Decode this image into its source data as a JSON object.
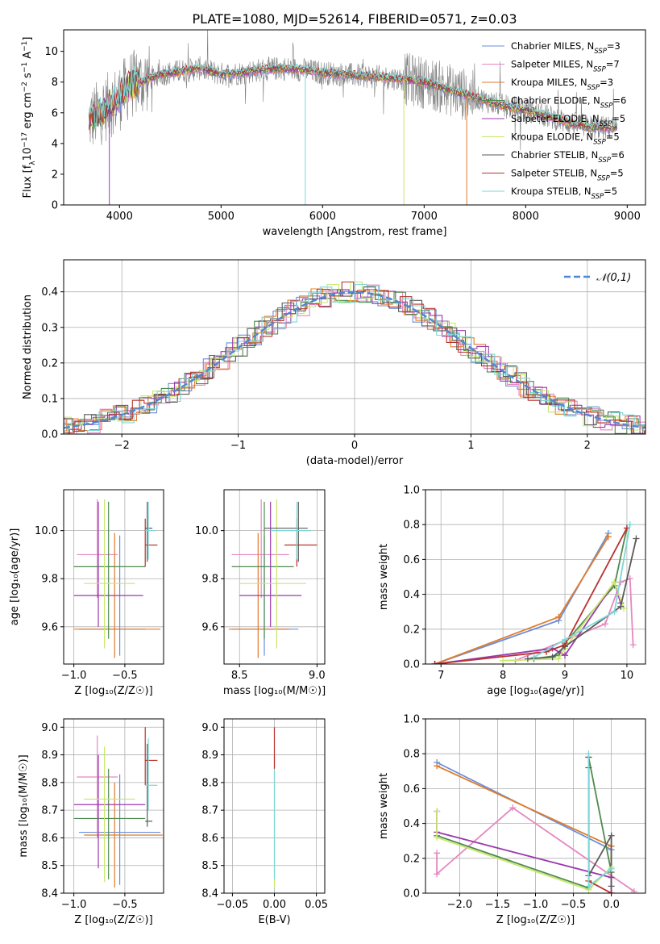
{
  "figure": {
    "title": "PLATE=1080, MJD=52614, FIBERID=0571, z=0.03"
  },
  "colors": {
    "series": [
      "#6a8fd8",
      "#e687c0",
      "#e07b2c",
      "#4f8a4f",
      "#9b3aad",
      "#c8e86b",
      "#5a5a5a",
      "#b8322d",
      "#7fd6d6"
    ],
    "grid": "#b0b0b0",
    "gauss": "#4f86d6"
  },
  "legend1": [
    {
      "label": "Chabrier MILES, N_SSP=3",
      "base": "Chabrier MILES, N",
      "sub": "SSP",
      "eq": "=3"
    },
    {
      "label": "Salpeter MILES, N_SSP=7",
      "base": "Salpeter MILES, N",
      "sub": "SSP",
      "eq": "=7"
    },
    {
      "label": "Kroupa MILES, N_SSP=3",
      "base": "Kroupa MILES, N",
      "sub": "SSP",
      "eq": "=3"
    },
    {
      "label": "Chabrier ELODIE, N_SSP=6",
      "base": "Chabrier ELODIE, N",
      "sub": "SSP",
      "eq": "=6"
    },
    {
      "label": "Salpeter ELODIE, N_SSP=5",
      "base": "Salpeter ELODIE, N",
      "sub": "SSP",
      "eq": "=5"
    },
    {
      "label": "Kroupa ELODIE, N_SSP=5",
      "base": "Kroupa ELODIE, N",
      "sub": "SSP",
      "eq": "=5"
    },
    {
      "label": "Chabrier STELIB, N_SSP=6",
      "base": "Chabrier STELIB, N",
      "sub": "SSP",
      "eq": "=6"
    },
    {
      "label": "Salpeter STELIB, N_SSP=5",
      "base": "Salpeter STELIB, N",
      "sub": "SSP",
      "eq": "=5"
    },
    {
      "label": "Kroupa STELIB, N_SSP=5",
      "base": "Kroupa STELIB, N",
      "sub": "SSP",
      "eq": "=5"
    }
  ],
  "chart_data": [
    {
      "type": "line",
      "name": "spectrum",
      "xlabel": "wavelength [Angstrom, rest frame]",
      "ylabel_parts": {
        "a": "Flux [f",
        "asub": "λ",
        "b": "10",
        "bsup": "−17",
        "c": " erg cm",
        "csup": "−2",
        "d": " s",
        "dsup": "−1",
        "e": " A",
        "esup": "−1",
        "f": "]"
      },
      "xlim": [
        3450,
        9180
      ],
      "ylim": [
        0,
        11.4
      ],
      "xticks": [
        4000,
        5000,
        6000,
        7000,
        8000,
        9000
      ],
      "yticks": [
        0,
        2,
        4,
        6,
        8,
        10
      ],
      "observed_color": "#808080",
      "legend_position": "top-right",
      "continuum": [
        [
          3700,
          5.5
        ],
        [
          3800,
          6.0
        ],
        [
          3900,
          6.5
        ],
        [
          4000,
          7.0
        ],
        [
          4100,
          7.8
        ],
        [
          4200,
          8.0
        ],
        [
          4400,
          8.5
        ],
        [
          4600,
          8.7
        ],
        [
          4800,
          8.9
        ],
        [
          5000,
          8.5
        ],
        [
          5200,
          8.6
        ],
        [
          5400,
          8.8
        ],
        [
          5600,
          8.9
        ],
        [
          5800,
          8.8
        ],
        [
          6000,
          8.6
        ],
        [
          6200,
          8.5
        ],
        [
          6400,
          8.4
        ],
        [
          6600,
          8.3
        ],
        [
          6800,
          8.2
        ],
        [
          7000,
          8.0
        ],
        [
          7200,
          7.6
        ],
        [
          7400,
          7.2
        ],
        [
          7600,
          6.8
        ],
        [
          7800,
          6.4
        ],
        [
          8000,
          6.2
        ],
        [
          8200,
          5.8
        ],
        [
          8400,
          5.4
        ],
        [
          8600,
          5.1
        ],
        [
          8800,
          5.0
        ],
        [
          8900,
          5.1
        ]
      ],
      "model_dropouts": [
        [
          3900,
          0
        ],
        [
          5830,
          0
        ],
        [
          6800,
          0
        ],
        [
          7420,
          0
        ]
      ]
    },
    {
      "type": "line",
      "name": "residual-distribution",
      "xlabel": "(data-model)/error",
      "ylabel": "Normed distribution",
      "xlim": [
        -2.5,
        2.5
      ],
      "ylim": [
        0,
        0.49
      ],
      "xticks": [
        -2,
        -1,
        0,
        1,
        2
      ],
      "xtick_labels": [
        "−2",
        "−1",
        "0",
        "1",
        "2"
      ],
      "yticks": [
        0.0,
        0.1,
        0.2,
        0.3,
        0.4
      ],
      "ytick_labels": [
        "0.0",
        "0.1",
        "0.2",
        "0.3",
        "0.4"
      ],
      "gauss_label": "𝒩(0,1)",
      "legend_position": "top-right",
      "grid": true
    },
    {
      "type": "scatter",
      "name": "age-vs-Z",
      "xlabel": "Z [log₁₀(Z/Z☉)]",
      "ylabel": "age  [log₁₀(age/yr)]",
      "xlim": [
        -1.1,
        -0.12
      ],
      "ylim": [
        9.445,
        10.17
      ],
      "xticks": [
        -1.0,
        -0.5
      ],
      "xtick_labels": [
        "−1.0",
        "−0.5"
      ],
      "yticks": [
        9.6,
        9.8,
        10.0
      ],
      "ytick_labels": [
        "9.6",
        "9.8",
        "10.0"
      ],
      "grid": true,
      "points": [
        {
          "s": 0,
          "x": -0.55,
          "y": 9.59,
          "xe": [
            -0.95,
            -0.3
          ],
          "ye": [
            9.48,
            9.98
          ]
        },
        {
          "s": 1,
          "x": -0.77,
          "y": 9.9,
          "xe": [
            -0.97,
            -0.57
          ],
          "ye": [
            9.72,
            10.13
          ]
        },
        {
          "s": 2,
          "x": -0.6,
          "y": 9.59,
          "xe": [
            -1.0,
            -0.15
          ],
          "ye": [
            9.47,
            9.99
          ]
        },
        {
          "s": 3,
          "x": -0.66,
          "y": 9.85,
          "xe": [
            -1.0,
            -0.3
          ],
          "ye": [
            9.55,
            10.12
          ]
        },
        {
          "s": 4,
          "x": -0.76,
          "y": 9.73,
          "xe": [
            -1.0,
            -0.32
          ],
          "ye": [
            9.6,
            10.12
          ]
        },
        {
          "s": 5,
          "x": -0.7,
          "y": 9.78,
          "xe": [
            -0.9,
            -0.4
          ],
          "ye": [
            9.51,
            10.13
          ]
        },
        {
          "s": 6,
          "x": -0.28,
          "y": 10.01,
          "xe": [
            -0.3,
            -0.23
          ],
          "ye": [
            9.87,
            10.12
          ]
        },
        {
          "s": 7,
          "x": -0.3,
          "y": 9.94,
          "xe": [
            -0.3,
            -0.18
          ],
          "ye": [
            9.85,
            10.05
          ]
        },
        {
          "s": 8,
          "x": -0.27,
          "y": 10.0,
          "xe": [
            -0.3,
            -0.2
          ],
          "ye": [
            9.88,
            10.12
          ]
        }
      ]
    },
    {
      "type": "scatter",
      "name": "age-vs-mass",
      "xlabel": "mass [log₁₀(M/M☉)]",
      "ylabel": "",
      "xlim": [
        8.4,
        9.05
      ],
      "ylim": [
        9.445,
        10.17
      ],
      "xticks": [
        8.5,
        9.0
      ],
      "xtick_labels": [
        "8.5",
        "9.0"
      ],
      "yticks": [
        9.6,
        9.8,
        10.0
      ],
      "ytick_labels": [
        "9.6",
        "9.8",
        "10.0"
      ],
      "grid": true,
      "points": [
        {
          "s": 0,
          "x": 8.66,
          "y": 9.59,
          "xe": [
            8.45,
            8.88
          ],
          "ye": [
            9.48,
            9.98
          ]
        },
        {
          "s": 1,
          "x": 8.64,
          "y": 9.9,
          "xe": [
            8.45,
            8.82
          ],
          "ye": [
            9.72,
            10.13
          ]
        },
        {
          "s": 2,
          "x": 8.62,
          "y": 9.59,
          "xe": [
            8.43,
            8.82
          ],
          "ye": [
            9.47,
            9.99
          ]
        },
        {
          "s": 3,
          "x": 8.66,
          "y": 9.85,
          "xe": [
            8.45,
            8.85
          ],
          "ye": [
            9.55,
            10.12
          ]
        },
        {
          "s": 4,
          "x": 8.7,
          "y": 9.73,
          "xe": [
            8.5,
            8.9
          ],
          "ye": [
            9.6,
            10.12
          ]
        },
        {
          "s": 5,
          "x": 8.74,
          "y": 9.78,
          "xe": [
            8.5,
            8.93
          ],
          "ye": [
            9.51,
            10.13
          ]
        },
        {
          "s": 6,
          "x": 8.88,
          "y": 10.01,
          "xe": [
            8.66,
            8.94
          ],
          "ye": [
            9.87,
            10.12
          ]
        },
        {
          "s": 7,
          "x": 8.87,
          "y": 9.94,
          "xe": [
            8.79,
            9.0
          ],
          "ye": [
            9.85,
            10.05
          ]
        },
        {
          "s": 8,
          "x": 8.87,
          "y": 10.0,
          "xe": [
            8.7,
            8.96
          ],
          "ye": [
            9.88,
            10.12
          ]
        }
      ]
    },
    {
      "type": "line",
      "name": "mass-weight-vs-age",
      "xlabel": "age  [log₁₀(age/yr)]",
      "ylabel": "mass weight",
      "xlim": [
        6.75,
        10.3
      ],
      "ylim": [
        0,
        1.0
      ],
      "xticks": [
        7,
        8,
        9,
        10
      ],
      "xtick_labels": [
        "7",
        "8",
        "9",
        "10"
      ],
      "yticks": [
        0.0,
        0.2,
        0.4,
        0.6,
        0.8,
        1.0
      ],
      "ytick_labels": [
        "0.0",
        "0.2",
        "0.4",
        "0.6",
        "0.8",
        "1.0"
      ],
      "grid": true,
      "series": [
        {
          "s": 0,
          "x": [
            6.9,
            8.9,
            9.7
          ],
          "y": [
            0.0,
            0.25,
            0.75
          ]
        },
        {
          "s": 1,
          "x": [
            8.2,
            9.65,
            9.9,
            10.05,
            10.1
          ],
          "y": [
            0.02,
            0.23,
            0.47,
            0.49,
            0.11
          ]
        },
        {
          "s": 2,
          "x": [
            6.9,
            8.9,
            9.7
          ],
          "y": [
            0.0,
            0.27,
            0.73
          ]
        },
        {
          "s": 3,
          "x": [
            8.5,
            8.9,
            9.0,
            9.8,
            10.0
          ],
          "y": [
            0.03,
            0.05,
            0.12,
            0.45,
            0.78
          ]
        },
        {
          "s": 4,
          "x": [
            6.9,
            8.8,
            9.0,
            9.8,
            9.9
          ],
          "y": [
            0.0,
            0.09,
            0.05,
            0.47,
            0.35
          ]
        },
        {
          "s": 5,
          "x": [
            8.0,
            8.9,
            9.0,
            9.8,
            9.95
          ],
          "y": [
            0.02,
            0.03,
            0.09,
            0.47,
            0.32
          ]
        },
        {
          "s": 6,
          "x": [
            8.4,
            8.8,
            9.0,
            9.9,
            10.15
          ],
          "y": [
            0.03,
            0.04,
            0.1,
            0.33,
            0.72
          ]
        },
        {
          "s": 7,
          "x": [
            6.9,
            8.7,
            9.0,
            10.0
          ],
          "y": [
            0.0,
            0.07,
            0.11,
            0.78
          ]
        },
        {
          "s": 8,
          "x": [
            8.5,
            9.0,
            9.8,
            10.05
          ],
          "y": [
            0.04,
            0.14,
            0.3,
            0.8
          ]
        }
      ]
    },
    {
      "type": "scatter",
      "name": "mass-vs-Z",
      "xlabel": "Z [log₁₀(Z/Z☉)]",
      "ylabel": "mass [log₁₀(M/M☉)]",
      "xlim": [
        -1.1,
        -0.12
      ],
      "ylim": [
        8.4,
        9.03
      ],
      "xticks": [
        -1.0,
        -0.5
      ],
      "xtick_labels": [
        "−1.0",
        "−0.5"
      ],
      "yticks": [
        8.4,
        8.5,
        8.6,
        8.7,
        8.8,
        8.9,
        9.0
      ],
      "ytick_labels": [
        "8.4",
        "8.5",
        "8.6",
        "8.7",
        "8.8",
        "8.9",
        "9.0"
      ],
      "grid": true,
      "points": [
        {
          "s": 0,
          "x": -0.55,
          "y": 8.62,
          "xe": [
            -0.95,
            -0.15
          ],
          "ye": [
            8.43,
            8.83
          ]
        },
        {
          "s": 1,
          "x": -0.77,
          "y": 8.82,
          "xe": [
            -0.97,
            -0.57
          ],
          "ye": [
            8.6,
            8.97
          ]
        },
        {
          "s": 2,
          "x": -0.6,
          "y": 8.61,
          "xe": [
            -0.9,
            -0.13
          ],
          "ye": [
            8.42,
            8.8
          ]
        },
        {
          "s": 3,
          "x": -0.66,
          "y": 8.67,
          "xe": [
            -1.0,
            -0.3
          ],
          "ye": [
            8.45,
            8.85
          ]
        },
        {
          "s": 4,
          "x": -0.76,
          "y": 8.72,
          "xe": [
            -1.0,
            -0.3
          ],
          "ye": [
            8.49,
            8.9
          ]
        },
        {
          "s": 5,
          "x": -0.7,
          "y": 8.74,
          "xe": [
            -0.9,
            -0.4
          ],
          "ye": [
            8.44,
            8.93
          ]
        },
        {
          "s": 6,
          "x": -0.28,
          "y": 8.66,
          "xe": [
            -0.3,
            -0.23
          ],
          "ye": [
            8.64,
            8.94
          ]
        },
        {
          "s": 7,
          "x": -0.3,
          "y": 8.88,
          "xe": [
            -0.3,
            -0.18
          ],
          "ye": [
            8.79,
            9.0
          ]
        },
        {
          "s": 8,
          "x": -0.27,
          "y": 8.79,
          "xe": [
            -0.3,
            -0.18
          ],
          "ye": [
            8.7,
            8.96
          ]
        }
      ]
    },
    {
      "type": "scatter",
      "name": "mass-vs-EBV",
      "xlabel": "E(B-V)",
      "ylabel": "",
      "xlim": [
        -0.06,
        0.06
      ],
      "ylim": [
        8.4,
        9.03
      ],
      "xticks": [
        -0.05,
        0.0,
        0.05
      ],
      "xtick_labels": [
        "−0.05",
        "0.00",
        "0.05"
      ],
      "yticks": [
        8.4,
        8.5,
        8.6,
        8.7,
        8.8,
        8.9,
        9.0
      ],
      "ytick_labels": [
        "8.4",
        "8.5",
        "8.6",
        "8.7",
        "8.8",
        "8.9",
        "9.0"
      ],
      "grid": true,
      "points": [
        {
          "s": 5,
          "x": 0.0,
          "y": 8.7,
          "xe": [
            0,
            0
          ],
          "ye": [
            8.42,
            8.92
          ]
        },
        {
          "s": 8,
          "x": 0.0,
          "y": 8.75,
          "xe": [
            0,
            0
          ],
          "ye": [
            8.45,
            8.9
          ]
        },
        {
          "s": 7,
          "x": 0.0,
          "y": 8.9,
          "xe": [
            0,
            0
          ],
          "ye": [
            8.85,
            9.0
          ]
        }
      ]
    },
    {
      "type": "line",
      "name": "mass-weight-vs-Z",
      "xlabel": "Z [log₁₀(Z/Z☉)]",
      "ylabel": "mass weight",
      "xlim": [
        -2.45,
        0.45
      ],
      "ylim": [
        0,
        1.0
      ],
      "xticks": [
        -2.0,
        -1.5,
        -1.0,
        -0.5,
        0.0
      ],
      "xtick_labels": [
        "−2.0",
        "−1.5",
        "−1.0",
        "−0.5",
        "0.0"
      ],
      "yticks": [
        0.0,
        0.2,
        0.4,
        0.6,
        0.8,
        1.0
      ],
      "ytick_labels": [
        "0.0",
        "0.2",
        "0.4",
        "0.6",
        "0.8",
        "1.0"
      ],
      "grid": true,
      "series": [
        {
          "s": 0,
          "x": [
            -2.3,
            0.0,
            0.0
          ],
          "y": [
            0.75,
            0.25,
            0.0
          ]
        },
        {
          "s": 1,
          "x": [
            -2.3,
            -2.3,
            -1.3,
            0.3
          ],
          "y": [
            0.23,
            0.11,
            0.49,
            0.01
          ]
        },
        {
          "s": 2,
          "x": [
            -2.3,
            0.0,
            0.0
          ],
          "y": [
            0.73,
            0.27,
            0.0
          ]
        },
        {
          "s": 3,
          "x": [
            -2.3,
            -0.3,
            -0.3,
            0.0
          ],
          "y": [
            0.33,
            0.03,
            0.78,
            0.12
          ]
        },
        {
          "s": 4,
          "x": [
            -2.3,
            -2.3,
            0.0,
            0.0
          ],
          "y": [
            0.47,
            0.35,
            0.09,
            0.0
          ]
        },
        {
          "s": 5,
          "x": [
            -2.3,
            -2.3,
            -0.3,
            0.0
          ],
          "y": [
            0.47,
            0.32,
            0.02,
            0.15
          ]
        },
        {
          "s": 6,
          "x": [
            -0.3,
            -0.3,
            0.0,
            0.0
          ],
          "y": [
            0.72,
            0.1,
            0.33,
            0.04
          ]
        },
        {
          "s": 7,
          "x": [
            -0.3,
            -0.3,
            0.0
          ],
          "y": [
            0.78,
            0.07,
            0.0
          ]
        },
        {
          "s": 8,
          "x": [
            -0.3,
            -0.3,
            0.0
          ],
          "y": [
            0.8,
            0.04,
            0.14
          ]
        }
      ]
    }
  ]
}
